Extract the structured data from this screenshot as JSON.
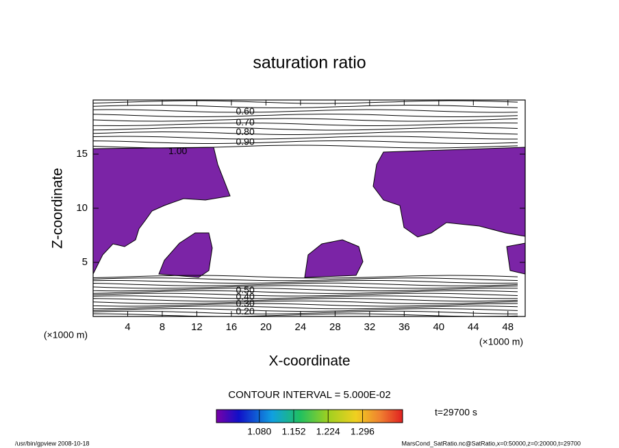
{
  "chart_data": {
    "type": "contour",
    "title": "saturation ratio",
    "x_label": "X-coordinate",
    "y_label": "Z-coordinate",
    "x_unit": "(×1000 m)",
    "y_unit": "(×1000 m)",
    "xlim": [
      0,
      50
    ],
    "ylim": [
      0,
      20
    ],
    "xticks": [
      4,
      8,
      12,
      16,
      20,
      24,
      28,
      32,
      36,
      40,
      44,
      48
    ],
    "yticks": [
      5,
      10,
      15
    ],
    "fill_color": "#7b24a6",
    "contour_labels": [
      {
        "label": "0.60",
        "x": 17.6,
        "y": 18.9
      },
      {
        "label": "0.70",
        "x": 17.6,
        "y": 17.9
      },
      {
        "label": "0.80",
        "x": 17.6,
        "y": 17.0
      },
      {
        "label": "0.90",
        "x": 17.6,
        "y": 16.1
      },
      {
        "label": "1.00",
        "x": 9.8,
        "y": 15.25
      },
      {
        "label": "0.50",
        "x": 17.6,
        "y": 2.4
      },
      {
        "label": "0.40",
        "x": 17.6,
        "y": 1.8
      },
      {
        "label": "0.30",
        "x": 17.6,
        "y": 1.15
      },
      {
        "label": "0.20",
        "x": 17.6,
        "y": 0.44
      }
    ],
    "contour_interval": "CONTOUR INTERVAL = 5.000E-02",
    "colorbar": {
      "lim": [
        0.99,
        1.38
      ],
      "ticks": [
        {
          "value": 1.08,
          "label": "1.080"
        },
        {
          "value": 1.152,
          "label": "1.152"
        },
        {
          "value": 1.224,
          "label": "1.224"
        },
        {
          "value": 1.296,
          "label": "1.296"
        }
      ]
    },
    "time_label": "t=29700 s",
    "footer_left": "/usr/bin/gpview   2008-10-18",
    "footer_right": "MarsCond_SatRatio.nc@SatRatio,x=0:50000,z=0:20000,t=29700"
  }
}
